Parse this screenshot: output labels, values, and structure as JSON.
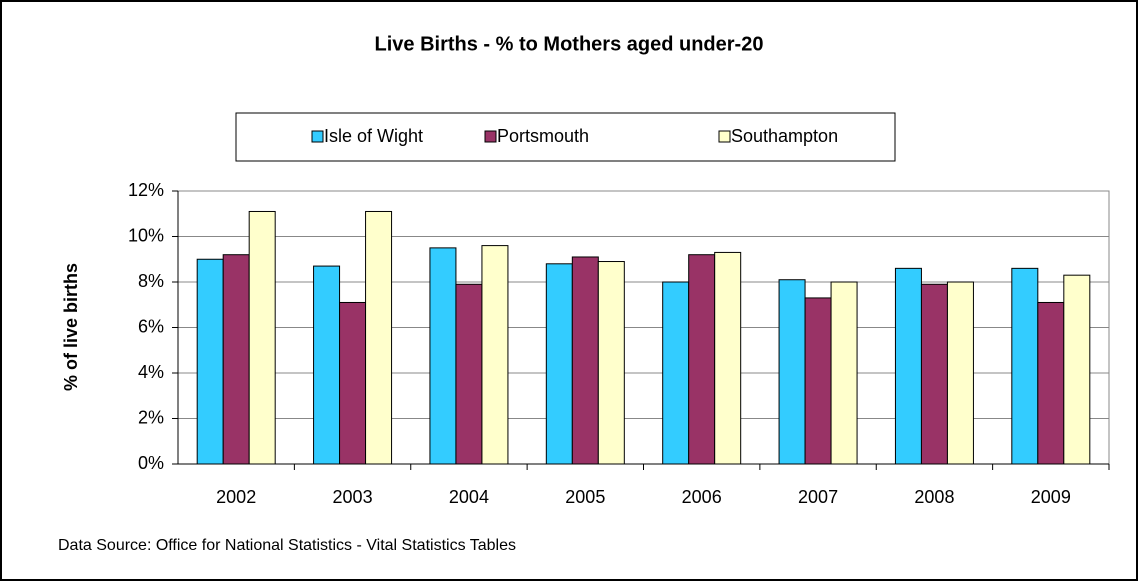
{
  "chart_data": {
    "type": "bar",
    "title": "Live Births - % to Mothers aged under-20",
    "y_label": "% of live births",
    "source": "Data Source: Office for National Statistics - Vital Statistics Tables",
    "categories": [
      "2002",
      "2003",
      "2004",
      "2005",
      "2006",
      "2007",
      "2008",
      "2009"
    ],
    "series": [
      {
        "name": "Isle of Wight",
        "color": "#33ccff",
        "values": [
          9.0,
          8.7,
          9.5,
          8.8,
          8.0,
          8.1,
          8.6,
          8.6
        ]
      },
      {
        "name": "Portsmouth",
        "color": "#993366",
        "values": [
          9.2,
          7.1,
          7.9,
          9.1,
          9.2,
          7.3,
          7.9,
          7.1
        ]
      },
      {
        "name": "Southampton",
        "color": "#ffffcc",
        "values": [
          11.1,
          11.1,
          9.6,
          8.9,
          9.3,
          8.0,
          8.0,
          8.3
        ]
      }
    ],
    "ylim": [
      0,
      12
    ],
    "yticks": [
      {
        "value": 0,
        "label": "0%"
      },
      {
        "value": 2,
        "label": "2%"
      },
      {
        "value": 4,
        "label": "4%"
      },
      {
        "value": 6,
        "label": "6%"
      },
      {
        "value": 8,
        "label": "8%"
      },
      {
        "value": 10,
        "label": "10%"
      },
      {
        "value": 12,
        "label": "12%"
      }
    ],
    "grid": true,
    "legend": "top"
  }
}
